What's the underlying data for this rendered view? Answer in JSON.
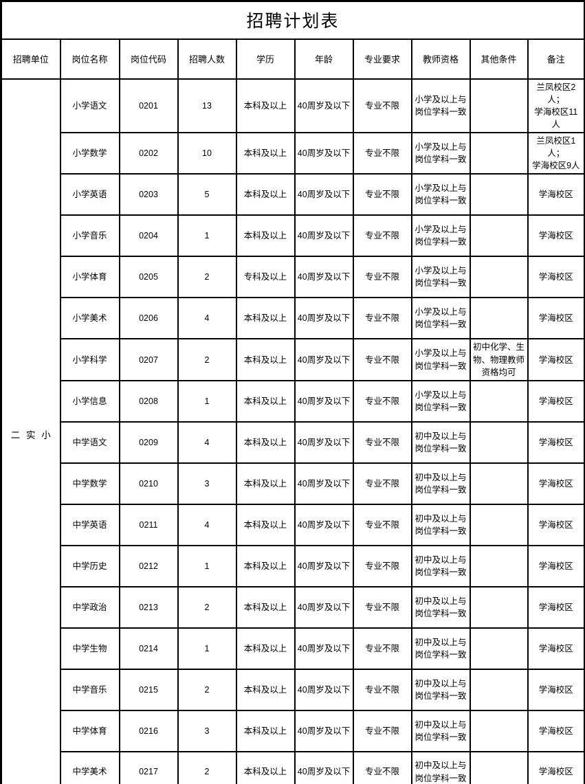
{
  "title": "招聘计划表",
  "colors": {
    "border": "#000000",
    "text": "#000000",
    "background": "#ffffff"
  },
  "table": {
    "columns": [
      "招聘单位",
      "岗位名称",
      "岗位代码",
      "招聘人数",
      "学历",
      "年龄",
      "专业要求",
      "教师资格",
      "其他条件",
      "备注"
    ],
    "unit": "二 实 小",
    "rows": [
      {
        "position": "小学语文",
        "code": "0201",
        "count": "13",
        "education": "本科及以上",
        "age": "40周岁及以下",
        "major": "专业不限",
        "teacher_cert": "小学及以上与\n岗位学科一致",
        "other": "",
        "remark": "兰凤校区2人；\n学海校区11人"
      },
      {
        "position": "小学数学",
        "code": "0202",
        "count": "10",
        "education": "本科及以上",
        "age": "40周岁及以下",
        "major": "专业不限",
        "teacher_cert": "小学及以上与\n岗位学科一致",
        "other": "",
        "remark": "兰凤校区1人；\n学海校区9人"
      },
      {
        "position": "小学英语",
        "code": "0203",
        "count": "5",
        "education": "本科及以上",
        "age": "40周岁及以下",
        "major": "专业不限",
        "teacher_cert": "小学及以上与\n岗位学科一致",
        "other": "",
        "remark": "学海校区"
      },
      {
        "position": "小学音乐",
        "code": "0204",
        "count": "1",
        "education": "本科及以上",
        "age": "40周岁及以下",
        "major": "专业不限",
        "teacher_cert": "小学及以上与\n岗位学科一致",
        "other": "",
        "remark": "学海校区"
      },
      {
        "position": "小学体育",
        "code": "0205",
        "count": "2",
        "education": "专科及以上",
        "age": "40周岁及以下",
        "major": "专业不限",
        "teacher_cert": "小学及以上与\n岗位学科一致",
        "other": "",
        "remark": "学海校区"
      },
      {
        "position": "小学美术",
        "code": "0206",
        "count": "4",
        "education": "本科及以上",
        "age": "40周岁及以下",
        "major": "专业不限",
        "teacher_cert": "小学及以上与\n岗位学科一致",
        "other": "",
        "remark": "学海校区"
      },
      {
        "position": "小学科学",
        "code": "0207",
        "count": "2",
        "education": "本科及以上",
        "age": "40周岁及以下",
        "major": "专业不限",
        "teacher_cert": "小学及以上与\n岗位学科一致",
        "other": "初中化学、生\n物、物理教师\n资格均可",
        "remark": "学海校区"
      },
      {
        "position": "小学信息",
        "code": "0208",
        "count": "1",
        "education": "本科及以上",
        "age": "40周岁及以下",
        "major": "专业不限",
        "teacher_cert": "小学及以上与\n岗位学科一致",
        "other": "",
        "remark": "学海校区"
      },
      {
        "position": "中学语文",
        "code": "0209",
        "count": "4",
        "education": "本科及以上",
        "age": "40周岁及以下",
        "major": "专业不限",
        "teacher_cert": "初中及以上与\n岗位学科一致",
        "other": "",
        "remark": "学海校区"
      },
      {
        "position": "中学数学",
        "code": "0210",
        "count": "3",
        "education": "本科及以上",
        "age": "40周岁及以下",
        "major": "专业不限",
        "teacher_cert": "初中及以上与\n岗位学科一致",
        "other": "",
        "remark": "学海校区"
      },
      {
        "position": "中学英语",
        "code": "0211",
        "count": "4",
        "education": "本科及以上",
        "age": "40周岁及以下",
        "major": "专业不限",
        "teacher_cert": "初中及以上与\n岗位学科一致",
        "other": "",
        "remark": "学海校区"
      },
      {
        "position": "中学历史",
        "code": "0212",
        "count": "1",
        "education": "本科及以上",
        "age": "40周岁及以下",
        "major": "专业不限",
        "teacher_cert": "初中及以上与\n岗位学科一致",
        "other": "",
        "remark": "学海校区"
      },
      {
        "position": "中学政治",
        "code": "0213",
        "count": "2",
        "education": "本科及以上",
        "age": "40周岁及以下",
        "major": "专业不限",
        "teacher_cert": "初中及以上与\n岗位学科一致",
        "other": "",
        "remark": "学海校区"
      },
      {
        "position": "中学生物",
        "code": "0214",
        "count": "1",
        "education": "本科及以上",
        "age": "40周岁及以下",
        "major": "专业不限",
        "teacher_cert": "初中及以上与\n岗位学科一致",
        "other": "",
        "remark": "学海校区"
      },
      {
        "position": "中学音乐",
        "code": "0215",
        "count": "2",
        "education": "本科及以上",
        "age": "40周岁及以下",
        "major": "专业不限",
        "teacher_cert": "初中及以上与\n岗位学科一致",
        "other": "",
        "remark": "学海校区"
      },
      {
        "position": "中学体育",
        "code": "0216",
        "count": "3",
        "education": "本科及以上",
        "age": "40周岁及以下",
        "major": "专业不限",
        "teacher_cert": "初中及以上与\n岗位学科一致",
        "other": "",
        "remark": "学海校区"
      },
      {
        "position": "中学美术",
        "code": "0217",
        "count": "2",
        "education": "本科及以上",
        "age": "40周岁及以下",
        "major": "专业不限",
        "teacher_cert": "初中及以上与\n岗位学科一致",
        "other": "",
        "remark": "学海校区"
      }
    ]
  }
}
